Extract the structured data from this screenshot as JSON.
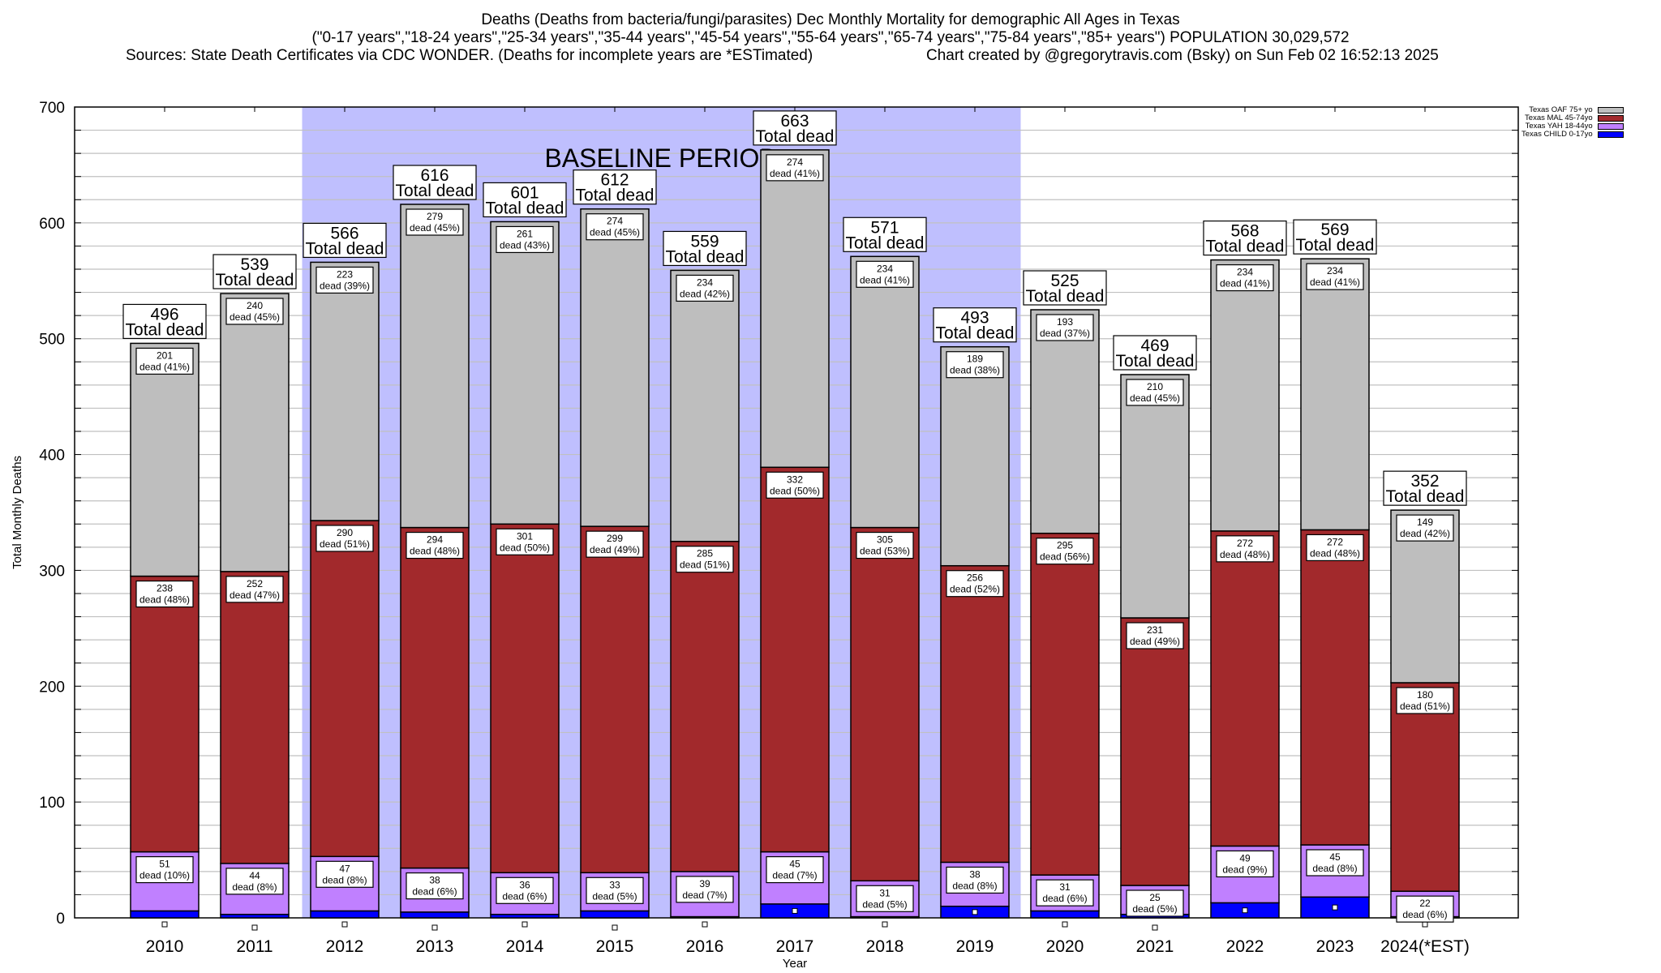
{
  "title": {
    "line1": "Deaths (Deaths from bacteria/fungi/parasites) Dec Monthly Mortality for demographic All Ages in Texas",
    "line2": "(\"0-17 years\",\"18-24 years\",\"25-34 years\",\"35-44 years\",\"45-54 years\",\"55-64 years\",\"65-74 years\",\"75-84 years\",\"85+ years\") POPULATION 30,029,572",
    "sources": "Sources: State Death Certificates via CDC WONDER. (Deaths for incomplete years are *ESTimated)",
    "credit": "Chart created by @gregorytravis.com (Bsky) on Sun Feb 02 16:52:13 2025"
  },
  "colors": {
    "oaf": "#bebebe",
    "mal": "#a2292c",
    "yah": "#c080ff",
    "child": "#0000ff",
    "baseline_band": "#bfbffe",
    "grid": "#c0c0c0"
  },
  "chart_data": {
    "type": "bar",
    "stacked": true,
    "title": "Deaths (Deaths from bacteria/fungi/parasites) Dec Monthly Mortality for demographic All Ages in Texas",
    "xlabel": "Year",
    "ylabel": "Total Monthly Deaths",
    "ylim": [
      0,
      700
    ],
    "yticks": [
      0,
      100,
      200,
      300,
      400,
      500,
      600,
      700
    ],
    "minor_grid_step": 20,
    "grid": true,
    "legend_position": "top-right",
    "categories": [
      "2010",
      "2011",
      "2012",
      "2013",
      "2014",
      "2015",
      "2016",
      "2017",
      "2018",
      "2019",
      "2020",
      "2021",
      "2022",
      "2023",
      "2024(*EST)"
    ],
    "totals": [
      496,
      539,
      566,
      616,
      601,
      612,
      559,
      663,
      571,
      493,
      525,
      469,
      568,
      569,
      352
    ],
    "total_label_suffix": "Total dead",
    "segment_label_word": "dead",
    "series": [
      {
        "key": "child",
        "name": "Texas CHILD 0-17yo",
        "values": [
          6,
          3,
          6,
          5,
          3,
          6,
          1,
          12,
          1,
          10,
          6,
          3,
          13,
          18,
          1
        ],
        "labeled": false
      },
      {
        "key": "yah",
        "name": "Texas YAH 18-44yo",
        "values": [
          51,
          44,
          47,
          38,
          36,
          33,
          39,
          45,
          31,
          38,
          31,
          25,
          49,
          45,
          22
        ],
        "pct": [
          10,
          8,
          8,
          6,
          6,
          5,
          7,
          7,
          5,
          8,
          6,
          5,
          9,
          8,
          6
        ],
        "labeled": true
      },
      {
        "key": "mal",
        "name": "Texas MAL 45-74yo",
        "values": [
          238,
          252,
          290,
          294,
          301,
          299,
          285,
          332,
          305,
          256,
          295,
          231,
          272,
          272,
          180
        ],
        "pct": [
          48,
          47,
          51,
          48,
          50,
          49,
          51,
          50,
          53,
          52,
          56,
          49,
          48,
          48,
          51
        ],
        "labeled": true
      },
      {
        "key": "oaf",
        "name": "Texas OAF 75+ yo",
        "values": [
          201,
          240,
          223,
          279,
          261,
          274,
          234,
          274,
          234,
          189,
          193,
          210,
          234,
          234,
          149
        ],
        "pct": [
          41,
          45,
          39,
          45,
          43,
          45,
          42,
          41,
          41,
          38,
          37,
          45,
          41,
          41,
          42
        ],
        "labeled": true
      }
    ],
    "legend_order": [
      "oaf",
      "mal",
      "yah",
      "child"
    ],
    "annotations": [
      {
        "type": "band",
        "label": "BASELINE PERIOD",
        "from_category": "2012",
        "to_category": "2019"
      }
    ]
  }
}
